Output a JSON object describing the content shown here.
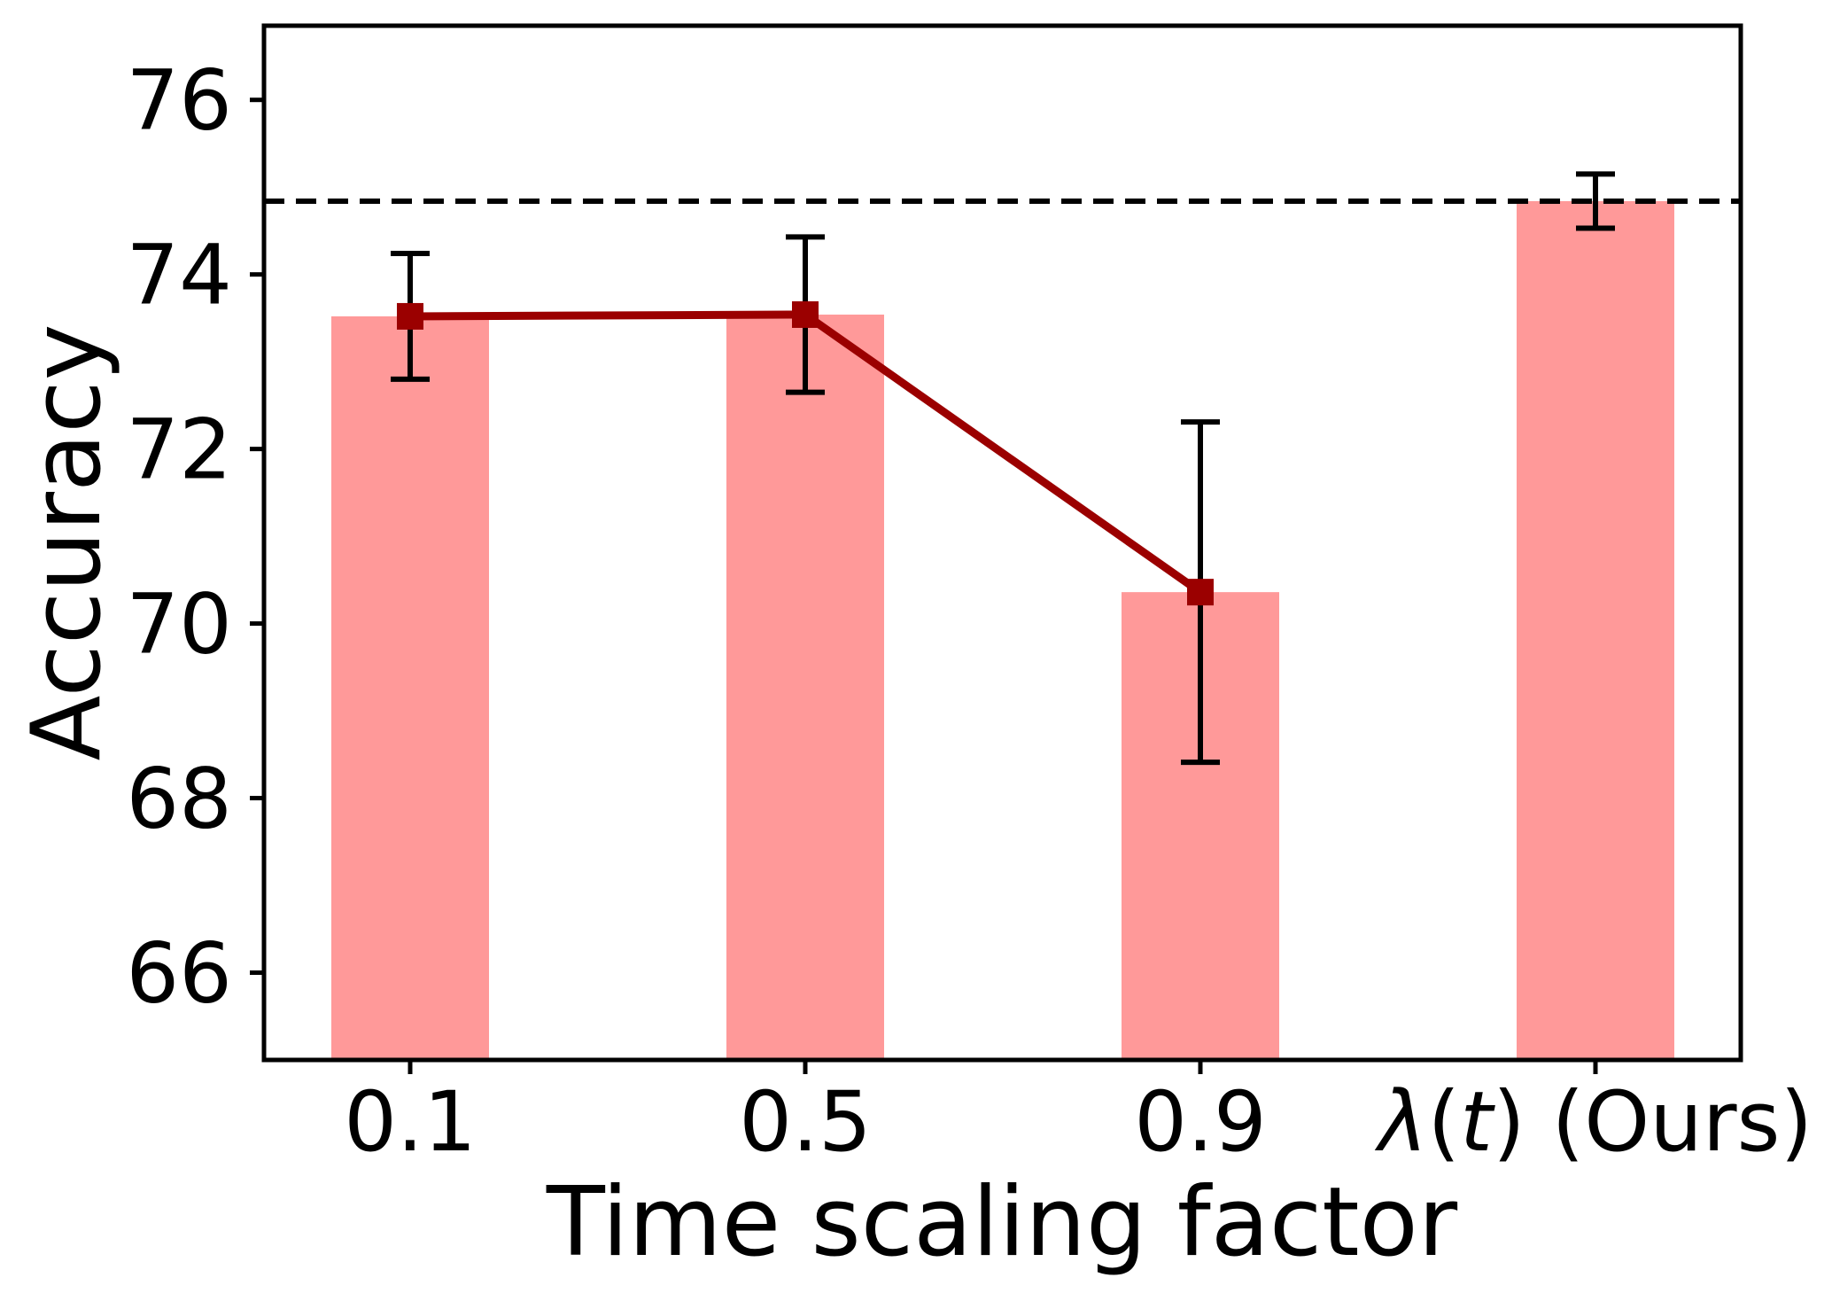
{
  "chart_data": {
    "type": "bar",
    "title": "",
    "xlabel": "Time scaling factor",
    "ylabel": "Accuracy",
    "categories": [
      "0.1",
      "0.5",
      "0.9",
      "λ(t) (Ours)"
    ],
    "bar_values": [
      73.52,
      73.54,
      70.36,
      74.84
    ],
    "bar_errors": [
      0.72,
      0.89,
      1.95,
      0.31
    ],
    "line_overlay": {
      "x_indices": [
        0,
        1,
        2
      ],
      "values": [
        73.52,
        73.54,
        70.36
      ],
      "marker": "square"
    },
    "dashed_reference_line": 74.84,
    "yticks": [
      66,
      68,
      70,
      72,
      74,
      76
    ],
    "ylim": [
      65.0,
      76.85
    ],
    "grid": false,
    "legend_position": "none",
    "colors": {
      "bar": "#FF9999",
      "line": "#9B0000",
      "marker": "#9B0000",
      "error_bar": "#000000",
      "dashed_line": "#000000",
      "axis": "#000000",
      "text": "#000000",
      "background": "#FFFFFF"
    }
  }
}
